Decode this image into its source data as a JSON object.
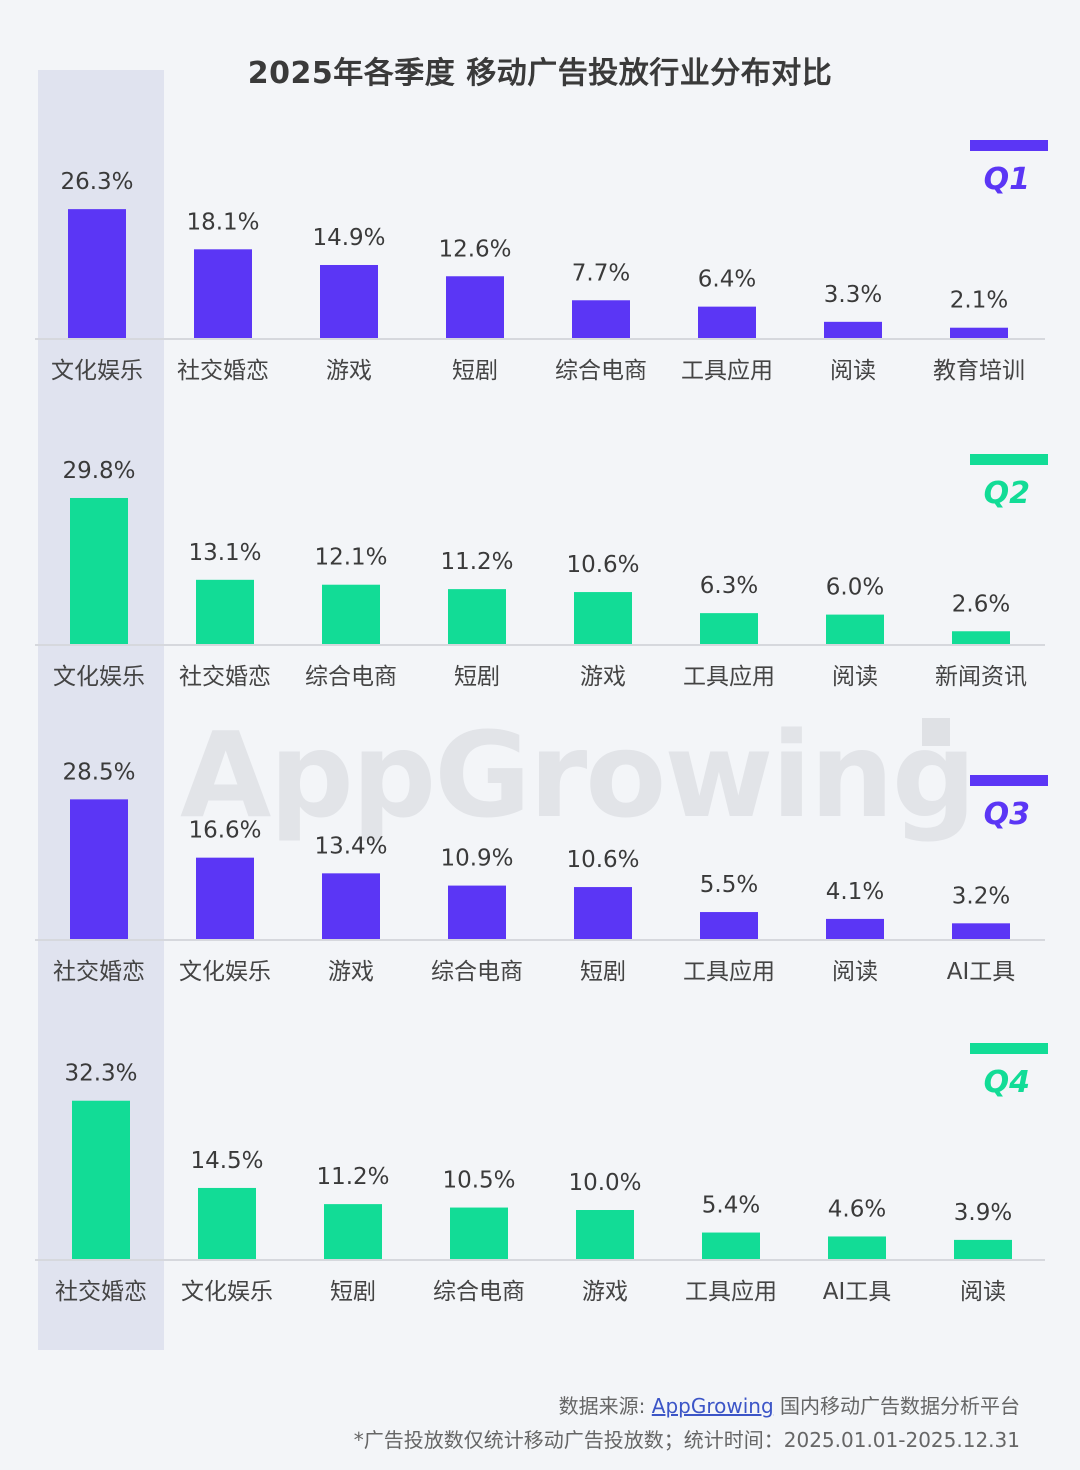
{
  "title": "2025年各季度 移动广告投放行业分布对比",
  "watermark": "AppGrowing",
  "colors": {
    "q1": "#5b36f5",
    "q2": "#12dc96",
    "q3": "#5b36f5",
    "q4": "#12dc96",
    "highlight": "#e0e3ef",
    "axis": "#d6d8dd"
  },
  "footer": {
    "source_prefix": "数据来源: ",
    "source_link": "AppGrowing",
    "source_suffix": " 国内移动广告数据分析平台",
    "note": "*广告投放数仅统计移动广告投放数；统计时间：2025.01.01-2025.12.31"
  },
  "chart_data": [
    {
      "type": "bar",
      "quarter": "Q1",
      "categories": [
        "文化娱乐",
        "社交婚恋",
        "游戏",
        "短剧",
        "综合电商",
        "工具应用",
        "阅读",
        "教育培训"
      ],
      "values": [
        26.3,
        18.1,
        14.9,
        12.6,
        7.7,
        6.4,
        3.3,
        2.1
      ],
      "labels": [
        "26.3%",
        "18.1%",
        "14.9%",
        "12.6%",
        "7.7%",
        "6.4%",
        "3.3%",
        "2.1%"
      ]
    },
    {
      "type": "bar",
      "quarter": "Q2",
      "categories": [
        "文化娱乐",
        "社交婚恋",
        "综合电商",
        "短剧",
        "游戏",
        "工具应用",
        "阅读",
        "新闻资讯"
      ],
      "values": [
        29.8,
        13.1,
        12.1,
        11.2,
        10.6,
        6.3,
        6.0,
        2.6
      ],
      "labels": [
        "29.8%",
        "13.1%",
        "12.1%",
        "11.2%",
        "10.6%",
        "6.3%",
        "6.0%",
        "2.6%"
      ]
    },
    {
      "type": "bar",
      "quarter": "Q3",
      "categories": [
        "社交婚恋",
        "文化娱乐",
        "游戏",
        "综合电商",
        "短剧",
        "工具应用",
        "阅读",
        "AI工具"
      ],
      "values": [
        28.5,
        16.6,
        13.4,
        10.9,
        10.6,
        5.5,
        4.1,
        3.2
      ],
      "labels": [
        "28.5%",
        "16.6%",
        "13.4%",
        "10.9%",
        "10.6%",
        "5.5%",
        "4.1%",
        "3.2%"
      ]
    },
    {
      "type": "bar",
      "quarter": "Q4",
      "categories": [
        "社交婚恋",
        "文化娱乐",
        "短剧",
        "综合电商",
        "游戏",
        "工具应用",
        "AI工具",
        "阅读"
      ],
      "values": [
        32.3,
        14.5,
        11.2,
        10.5,
        10.0,
        5.4,
        4.6,
        3.9
      ],
      "labels": [
        "32.3%",
        "14.5%",
        "11.2%",
        "10.5%",
        "10.0%",
        "5.4%",
        "4.6%",
        "3.9%"
      ]
    }
  ]
}
